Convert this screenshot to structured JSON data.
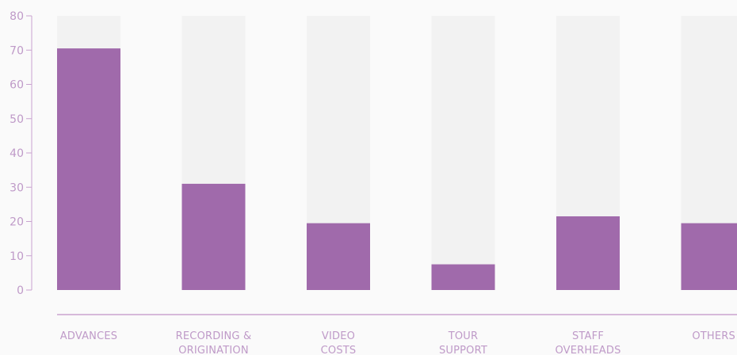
{
  "chart_data": {
    "type": "bar",
    "categories": [
      [
        "ADVANCES"
      ],
      [
        "RECORDING &",
        "ORIGINATION"
      ],
      [
        "VIDEO",
        "COSTS"
      ],
      [
        "TOUR",
        "SUPPORT"
      ],
      [
        "STAFF",
        "OVERHEADS"
      ],
      [
        "OTHERS"
      ]
    ],
    "values": [
      70.5,
      31,
      19.5,
      7.5,
      21.5,
      19.5
    ],
    "ylim": [
      0,
      80
    ],
    "yticks": [
      0,
      10,
      20,
      30,
      40,
      50,
      60,
      70,
      80
    ],
    "grid": false,
    "colors": {
      "bar": "#a06aab",
      "track": "#f2f2f2",
      "axis": "#c9a3d0",
      "label": "#bf9ac8",
      "background": "#fafafa"
    }
  }
}
